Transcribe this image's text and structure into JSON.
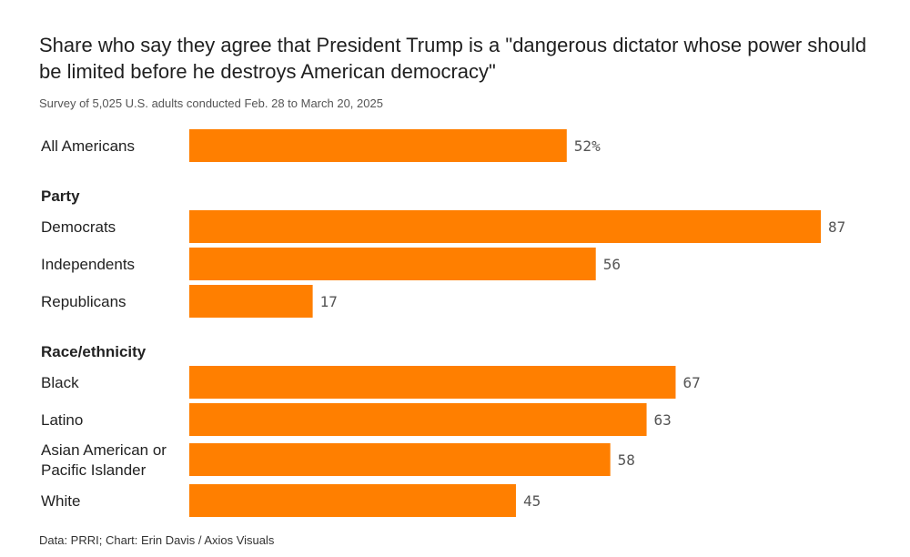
{
  "title": "Share who say they agree that President Trump is a \"dangerous dictator whose power should be limited before he destroys American democracy\"",
  "subtitle": "Survey of 5,025 U.S. adults conducted Feb. 28 to March 20, 2025",
  "footer": "Data: PRRI; Chart: Erin Davis / Axios Visuals",
  "colors": {
    "bar": "#ff7f00"
  },
  "chart_data": {
    "type": "bar",
    "orientation": "horizontal",
    "value_suffix_first": "%",
    "groups": [
      {
        "label": "",
        "items": [
          {
            "category": "All Americans",
            "value": 52,
            "label": "52%"
          }
        ]
      },
      {
        "label": "Party",
        "items": [
          {
            "category": "Democrats",
            "value": 87,
            "label": "87"
          },
          {
            "category": "Independents",
            "value": 56,
            "label": "56"
          },
          {
            "category": "Republicans",
            "value": 17,
            "label": "17"
          }
        ]
      },
      {
        "label": "Race/ethnicity",
        "items": [
          {
            "category": "Black",
            "value": 67,
            "label": "67"
          },
          {
            "category": "Latino",
            "value": 63,
            "label": "63"
          },
          {
            "category": "Asian American or Pacific Islander",
            "value": 58,
            "label": "58",
            "lines": [
              "Asian American or",
              "Pacific Islander"
            ]
          },
          {
            "category": "White",
            "value": 45,
            "label": "45"
          }
        ]
      }
    ],
    "xlim": [
      0,
      100
    ],
    "grid": false,
    "legend": "none"
  }
}
